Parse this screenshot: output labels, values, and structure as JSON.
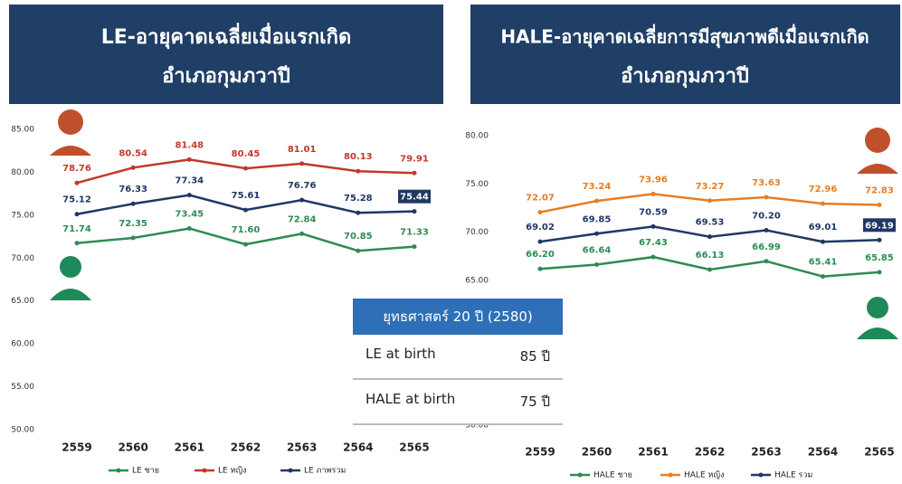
{
  "chart_data": [
    {
      "type": "line",
      "title": "LE-อายุคาดเฉลี่ยเมื่อแรกเกิด",
      "subtitle": "อำเภอกุมภวาปี",
      "categories": [
        "2559",
        "2560",
        "2561",
        "2562",
        "2563",
        "2564",
        "2565"
      ],
      "ylim": [
        50,
        85
      ],
      "yticks": [
        {
          "value": 85,
          "label": "85.00"
        },
        {
          "value": 80,
          "label": "80.00"
        },
        {
          "value": 75,
          "label": "75.00"
        },
        {
          "value": 70,
          "label": "70.00"
        },
        {
          "value": 65,
          "label": "65.00"
        },
        {
          "value": 60,
          "label": "60.00"
        },
        {
          "value": 55,
          "label": "55.00"
        },
        {
          "value": 50,
          "label": "50.00"
        }
      ],
      "series": [
        {
          "name": "LE ชาย",
          "color": "#2e8b57",
          "values": [
            71.74,
            72.35,
            73.45,
            71.6,
            72.84,
            70.85,
            71.33
          ],
          "value_labels": [
            "71.74",
            "72.35",
            "73.45",
            "71.60",
            "72.84",
            "70.85",
            "71.33"
          ]
        },
        {
          "name": "LE หญิง",
          "color": "#c0392b",
          "values": [
            78.76,
            80.54,
            81.48,
            80.45,
            81.01,
            80.13,
            79.91
          ],
          "value_labels": [
            "78.76",
            "80.54",
            "81.48",
            "80.45",
            "81.01",
            "80.13",
            "79.91"
          ]
        },
        {
          "name": "LE ภาพรวม",
          "color": "#1f3864",
          "values": [
            75.12,
            76.33,
            77.34,
            75.61,
            76.76,
            75.28,
            75.44
          ],
          "value_labels": [
            "75.12",
            "76.33",
            "77.34",
            "75.61",
            "76.76",
            "75.28",
            "75.44"
          ]
        }
      ]
    },
    {
      "type": "line",
      "title": "HALE-อายุคาดเฉลี่ยการมีสุขภาพดีเมื่อแรกเกิด",
      "subtitle": "อำเภอกุมภวาปี",
      "categories": [
        "2559",
        "2560",
        "2561",
        "2562",
        "2563",
        "2564",
        "2565"
      ],
      "ylim": [
        50,
        80
      ],
      "yticks": [
        {
          "value": 80,
          "label": "80.00"
        },
        {
          "value": 75,
          "label": "75.00"
        },
        {
          "value": 70,
          "label": "70.00"
        },
        {
          "value": 65,
          "label": "65.00"
        },
        {
          "value": 50,
          "label": "50.00"
        }
      ],
      "series": [
        {
          "name": "HALE ชาย",
          "color": "#2e8b57",
          "values": [
            66.2,
            66.64,
            67.43,
            66.13,
            66.99,
            65.41,
            65.85
          ],
          "value_labels": [
            "66.20",
            "66.64",
            "67.43",
            "66.13",
            "66.99",
            "65.41",
            "65.85"
          ]
        },
        {
          "name": "HALE หญิง",
          "color": "#e67e22",
          "values": [
            72.07,
            73.24,
            73.96,
            73.27,
            73.63,
            72.96,
            72.83
          ],
          "value_labels": [
            "72.07",
            "73.24",
            "73.96",
            "73.27",
            "73.63",
            "72.96",
            "72.83"
          ]
        },
        {
          "name": "HALE รวม",
          "color": "#1f3864",
          "values": [
            69.02,
            69.85,
            70.59,
            69.53,
            70.2,
            69.01,
            69.19
          ],
          "value_labels": [
            "69.02",
            "69.85",
            "70.59",
            "69.53",
            "70.20",
            "69.01",
            "69.19"
          ]
        }
      ]
    }
  ],
  "table": {
    "header": "ยุทธศาสตร์ 20 ปี (2580)",
    "rows": [
      [
        "LE at birth",
        "85 ปี"
      ],
      [
        "HALE at birth",
        "75 ปี"
      ]
    ]
  }
}
